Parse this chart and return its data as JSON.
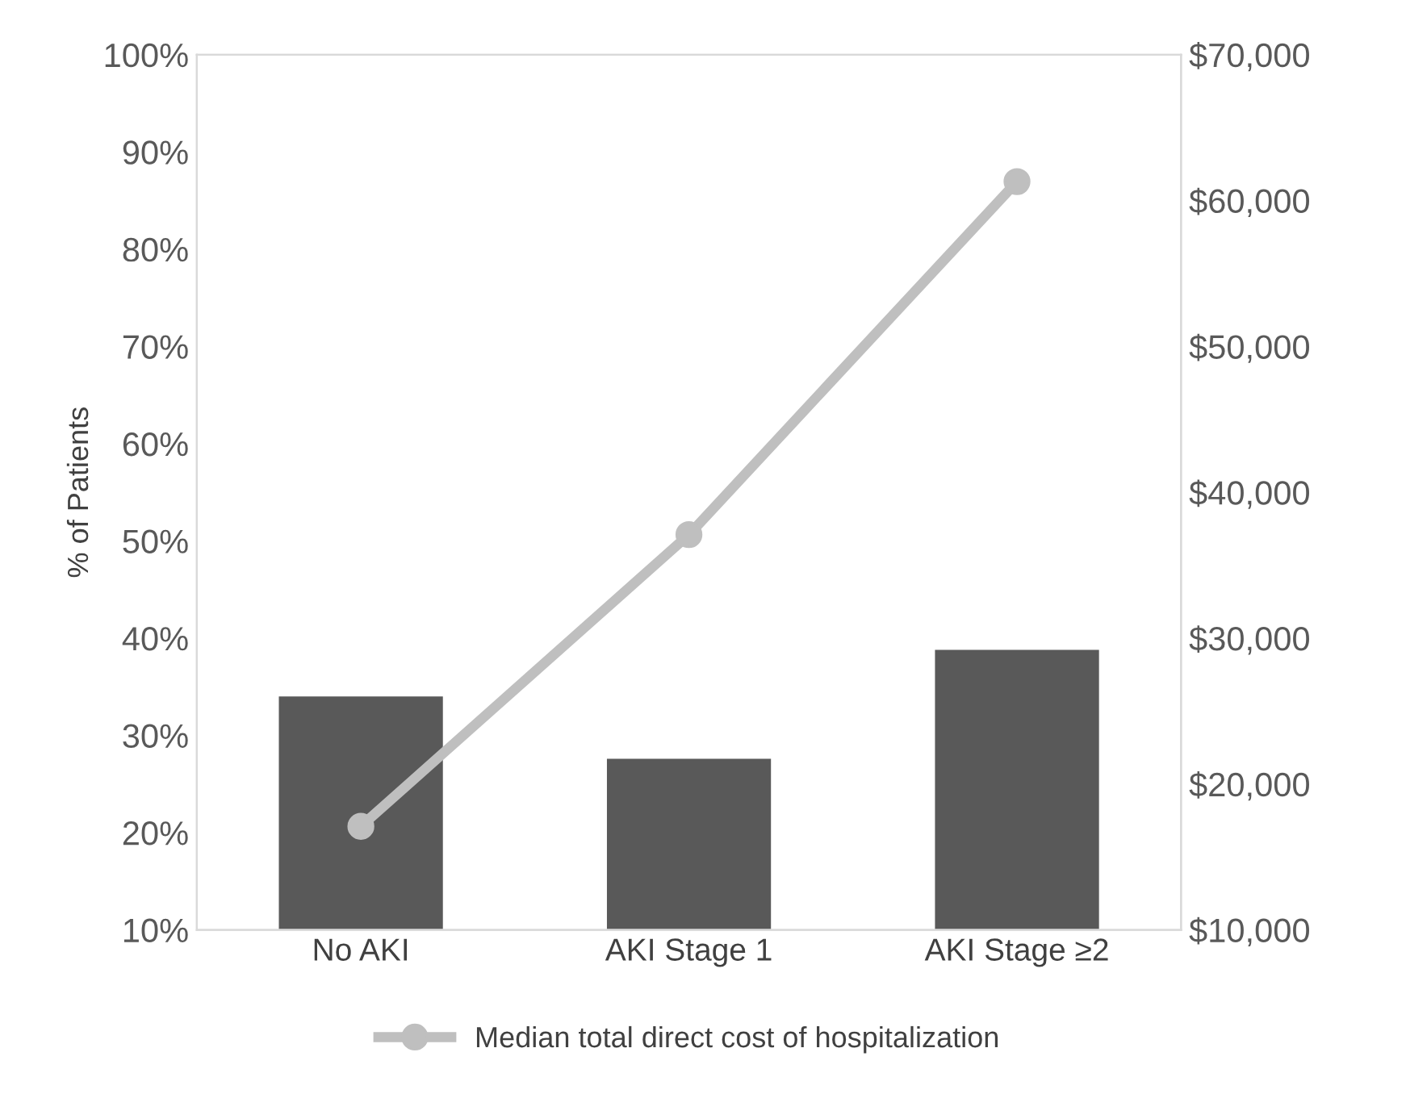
{
  "chart_data": {
    "type": "bar",
    "ylabel": "% of Patients",
    "categories": [
      "No AKI",
      "AKI Stage 1",
      "AKI Stage ≥2"
    ],
    "series": [
      {
        "color": "#595959",
        "values": [
          34,
          27.6,
          38.8
        ]
      },
      {
        "type": "line",
        "axis": "y2",
        "name": "Median total direct cost of hospitalization",
        "color": "#bfbfbf",
        "values": [
          17100,
          37100,
          61300
        ],
        "marker": "circle",
        "line_style": "solid"
      }
    ],
    "ylim": [
      10,
      100
    ],
    "yticks": [
      {
        "value": 10,
        "label": "10%"
      },
      {
        "value": 20,
        "label": "20%"
      },
      {
        "value": 30,
        "label": "30%"
      },
      {
        "value": 40,
        "label": "40%"
      },
      {
        "value": 50,
        "label": "50%"
      },
      {
        "value": 60,
        "label": "60%"
      },
      {
        "value": 70,
        "label": "70%"
      },
      {
        "value": 80,
        "label": "80%"
      },
      {
        "value": 90,
        "label": "90%"
      },
      {
        "value": 100,
        "label": "100%"
      }
    ],
    "y2lim": [
      10000,
      70000
    ],
    "y2ticks": [
      {
        "value": 10000,
        "label": "$10,000"
      },
      {
        "value": 20000,
        "label": "$20,000"
      },
      {
        "value": 30000,
        "label": "$30,000"
      },
      {
        "value": 40000,
        "label": "$40,000"
      },
      {
        "value": 50000,
        "label": "$50,000"
      },
      {
        "value": 60000,
        "label": "$60,000"
      },
      {
        "value": 70000,
        "label": "$70,000"
      }
    ],
    "grid": false,
    "legend": "bottom"
  }
}
